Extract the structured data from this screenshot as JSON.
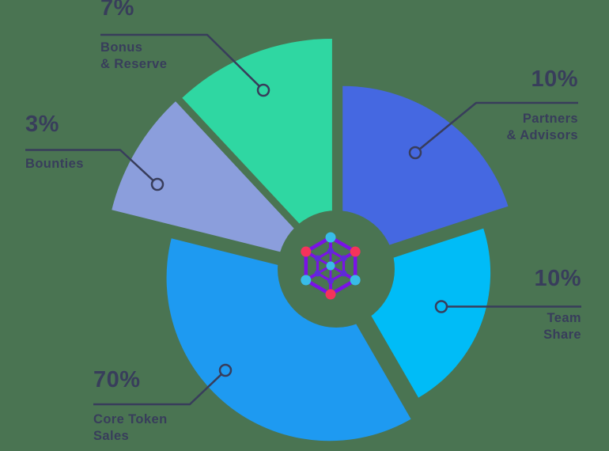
{
  "background_color": "#4A7452",
  "text_color": "#383D5B",
  "leader_line_color": "#383D5B",
  "chart_data": {
    "type": "pie",
    "unit": "%",
    "legend_position": "callouts",
    "donut_hole": true,
    "slices": [
      {
        "label": "Bonus & Reserve",
        "label_lines": [
          "Bonus",
          "& Reserve"
        ],
        "value": 7,
        "value_label": "7%",
        "color": "#2FD7A2"
      },
      {
        "label": "Partners & Advisors",
        "label_lines": [
          "Partners",
          "& Advisors"
        ],
        "value": 10,
        "value_label": "10%",
        "color": "#4568E1"
      },
      {
        "label": "Team Share",
        "label_lines": [
          "Team",
          "Share"
        ],
        "value": 10,
        "value_label": "10%",
        "color": "#00BCF7"
      },
      {
        "label": "Core Token Sales",
        "label_lines": [
          "Core Token",
          "Sales"
        ],
        "value": 70,
        "value_label": "70%",
        "color": "#1E9AF1"
      },
      {
        "label": "Bounties",
        "label_lines": [
          "Bounties"
        ],
        "value": 3,
        "value_label": "3%",
        "color": "#8B9EDC"
      }
    ]
  },
  "logo": {
    "name": "network-web-logo",
    "line_color": "#7A12E6",
    "outer_node_colors": [
      "#38BCE8",
      "#F5335B",
      "#38BCE8",
      "#F5335B",
      "#38BCE8",
      "#F5335B"
    ],
    "inner_node_color": "#5D2BD8",
    "center_node_color": "#38BCE8"
  }
}
